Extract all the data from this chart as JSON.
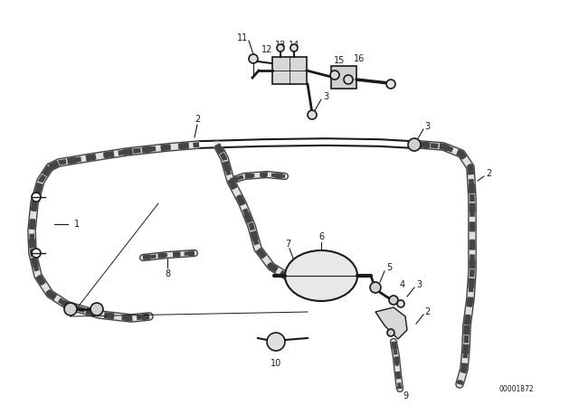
{
  "bg_color": "#ffffff",
  "fig_width": 6.4,
  "fig_height": 4.48,
  "dpi": 100,
  "watermark": "00001872",
  "lc": "#1a1a1a",
  "gray": "#888888",
  "lt_gray": "#cccccc",
  "hose_lw": 3.5,
  "pipe_lw": 4.5,
  "label_fs": 7,
  "thin_lw": 0.8
}
